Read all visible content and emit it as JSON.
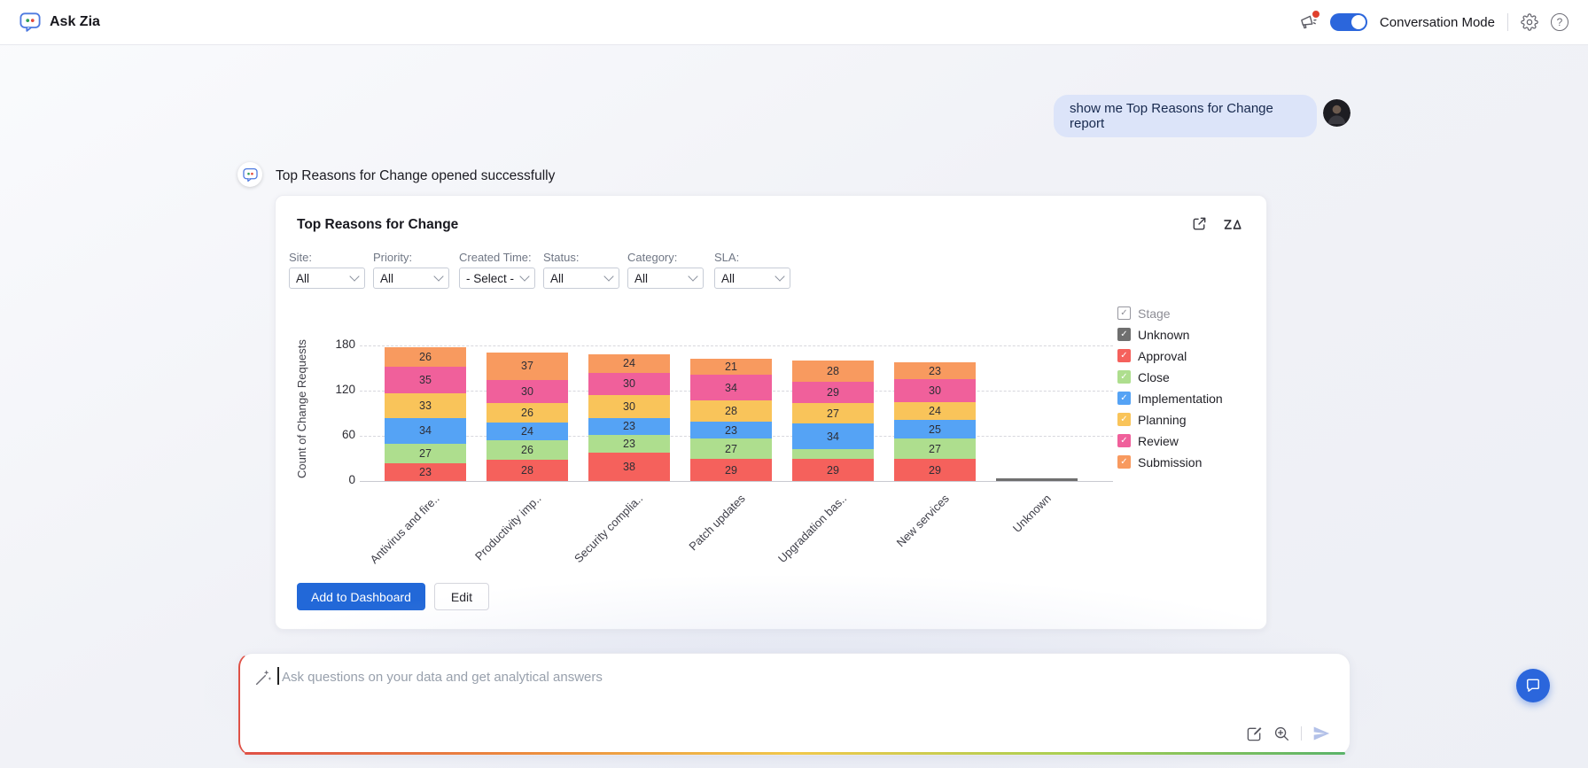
{
  "header": {
    "app_title": "Ask Zia",
    "conversation_mode_label": "Conversation Mode",
    "toggle_state": "on"
  },
  "chat": {
    "user_message": "show me Top Reasons for Change report",
    "bot_message": "Top Reasons for Change opened successfully"
  },
  "report": {
    "title": "Top Reasons for Change",
    "filters": [
      {
        "slug": "site",
        "label": "Site:",
        "value": "All"
      },
      {
        "slug": "priority",
        "label": "Priority:",
        "value": "All"
      },
      {
        "slug": "created-time",
        "label": "Created Time:",
        "value": "- Select -"
      },
      {
        "slug": "status",
        "label": "Status:",
        "value": "All"
      },
      {
        "slug": "category",
        "label": "Category:",
        "value": "All"
      },
      {
        "slug": "sla",
        "label": "SLA:",
        "value": "All"
      }
    ],
    "actions": {
      "add_to_dashboard": "Add to Dashboard",
      "edit": "Edit"
    }
  },
  "chart_data": {
    "type": "bar",
    "stacked": true,
    "title": "Top Reasons for Change",
    "xlabel": "",
    "ylabel": "Count of Change Requests",
    "yticks": [
      0,
      60,
      120,
      180
    ],
    "ylim": [
      0,
      190
    ],
    "grid": "horizontal-dashed",
    "legend_title": "Stage",
    "legend_position": "right",
    "value_labels": true,
    "categories": [
      "Antivirus and fire..",
      "Productivity imp..",
      "Security complia..",
      "Patch updates",
      "Upgradation bas..",
      "New services",
      "Unknown"
    ],
    "series": [
      {
        "name": "Unknown",
        "color": "#6f6f6f",
        "values": [
          0,
          0,
          0,
          0,
          0,
          0,
          4
        ]
      },
      {
        "name": "Approval",
        "color": "#f5615c",
        "values": [
          23,
          28,
          38,
          29,
          29,
          29,
          0
        ]
      },
      {
        "name": "Close",
        "color": "#aede8e",
        "values": [
          27,
          26,
          23,
          27,
          13,
          27,
          0
        ]
      },
      {
        "name": "Implementation",
        "color": "#55a3f5",
        "values": [
          34,
          24,
          23,
          23,
          34,
          25,
          0
        ]
      },
      {
        "name": "Planning",
        "color": "#f9c45a",
        "values": [
          33,
          26,
          30,
          28,
          27,
          24,
          0
        ]
      },
      {
        "name": "Review",
        "color": "#f0609b",
        "values": [
          35,
          30,
          30,
          34,
          29,
          30,
          0
        ]
      },
      {
        "name": "Submission",
        "color": "#f89a5f",
        "values": [
          26,
          37,
          24,
          21,
          28,
          23,
          0
        ]
      }
    ]
  },
  "composer": {
    "placeholder": "Ask questions on your data and get analytical answers"
  },
  "glyphs": {
    "check": "✓",
    "help": "?"
  },
  "colors": {
    "accent_blue": "#2268d8",
    "toggle_on": "#2b66dc",
    "user_bubble": "#dce4f9",
    "notification_dot": "#e0412e",
    "composer_gradient": [
      "#df5146",
      "#ec8a3e",
      "#f1c84b",
      "#a8cf52",
      "#5ab369"
    ]
  },
  "icons": {
    "logo": "zia-chat-bubble",
    "announcements": "megaphone",
    "settings": "gear",
    "help": "question-mark-circle",
    "report_open": "external-link",
    "zia_insights": "zia-scribble",
    "composer_left": "magic-wand",
    "composer_compose": "document-edit",
    "composer_zoom": "magnifier-plus",
    "send": "paper-plane",
    "fab": "chat-bubble"
  }
}
